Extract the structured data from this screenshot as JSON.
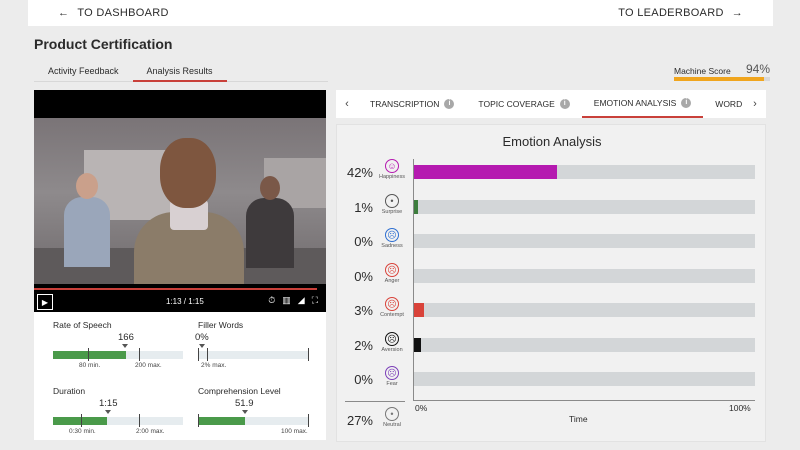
{
  "nav": {
    "back_label": "TO DASHBOARD",
    "back_icon": "arrow-left-icon",
    "leaderboard_label": "TO LEADERBOARD",
    "leaderboard_icon": "arrow-right-icon"
  },
  "page": {
    "title": "Product Certification"
  },
  "tabs": [
    {
      "label": "Activity Feedback",
      "active": false
    },
    {
      "label": "Analysis Results",
      "active": true
    }
  ],
  "machine_score": {
    "label": "Machine Score",
    "value": "94%",
    "fraction": 0.94,
    "color": "#f0a51e"
  },
  "video": {
    "time": "1:13 / 1:15",
    "progress": 0.97
  },
  "metrics": {
    "rate_of_speech": {
      "title": "Rate of Speech",
      "value": "166",
      "min_label": "80 min.",
      "max_label": "200 max."
    },
    "filler_words": {
      "title": "Filler Words",
      "value": "0%",
      "max_label": "2% max."
    },
    "duration": {
      "title": "Duration",
      "value": "1:15",
      "min_label": "0:30 min.",
      "max_label": "2:00 max."
    },
    "comprehension": {
      "title": "Comprehension Level",
      "value": "51.9",
      "max_label": "100 max."
    }
  },
  "analysis_tabs": [
    {
      "label": "TRANSCRIPTION",
      "active": false
    },
    {
      "label": "TOPIC COVERAGE",
      "active": false
    },
    {
      "label": "EMOTION ANALYSIS",
      "active": true
    },
    {
      "label": "WORD CLO",
      "active": false
    }
  ],
  "chart_data": {
    "type": "bar",
    "title": "Emotion Analysis",
    "xlabel": "Time",
    "x_tick_labels": [
      "0%",
      "100%"
    ],
    "xlim": [
      0,
      100
    ],
    "categories": [
      "Happiness",
      "Surprise",
      "Sadness",
      "Anger",
      "Contempt",
      "Aversion",
      "Fear",
      "Neutral"
    ],
    "values": [
      42,
      1,
      0,
      0,
      3,
      2,
      0,
      27
    ],
    "value_labels": [
      "42%",
      "1%",
      "0%",
      "0%",
      "3%",
      "2%",
      "0%",
      "27%"
    ],
    "bar_colors": [
      "#b51ab0",
      "#3d7d3d",
      "#2e6fd1",
      "#d9433a",
      "#d9433a",
      "#111111",
      "#7b3fb8",
      "#888888"
    ],
    "face_colors": [
      "#b51ab0",
      "#555555",
      "#2e6fd1",
      "#d9433a",
      "#d9433a",
      "#111111",
      "#7b3fb8",
      "#777777"
    ]
  }
}
